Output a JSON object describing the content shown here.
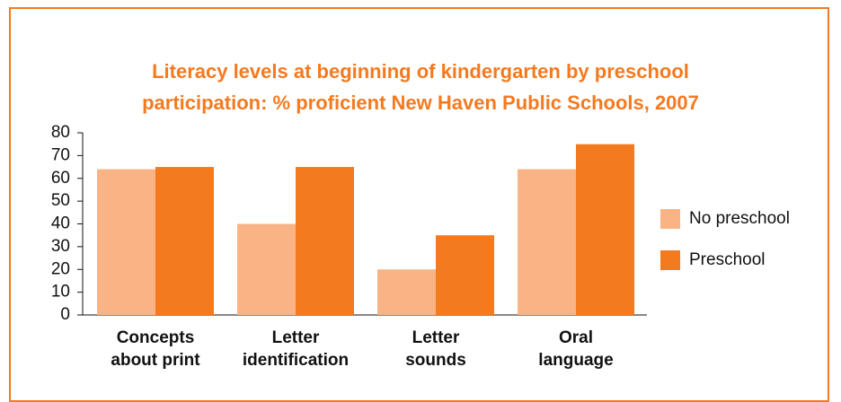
{
  "chart_data": {
    "type": "bar",
    "title": "Literacy levels at beginning of kindergarten by preschool participation: % proficient New Haven Public Schools, 2007",
    "categories": [
      "Concepts about print",
      "Letter identification",
      "Letter sounds",
      "Oral language"
    ],
    "series": [
      {
        "name": "No preschool",
        "color": "#f9b384",
        "values": [
          64,
          40,
          20,
          64
        ]
      },
      {
        "name": "Preschool",
        "color": "#f47a20",
        "values": [
          65,
          65,
          35,
          75
        ]
      }
    ],
    "ylim": [
      0,
      80
    ],
    "yticks": [
      0,
      10,
      20,
      30,
      40,
      50,
      60,
      70,
      80
    ],
    "grid": false,
    "legend": "right"
  }
}
